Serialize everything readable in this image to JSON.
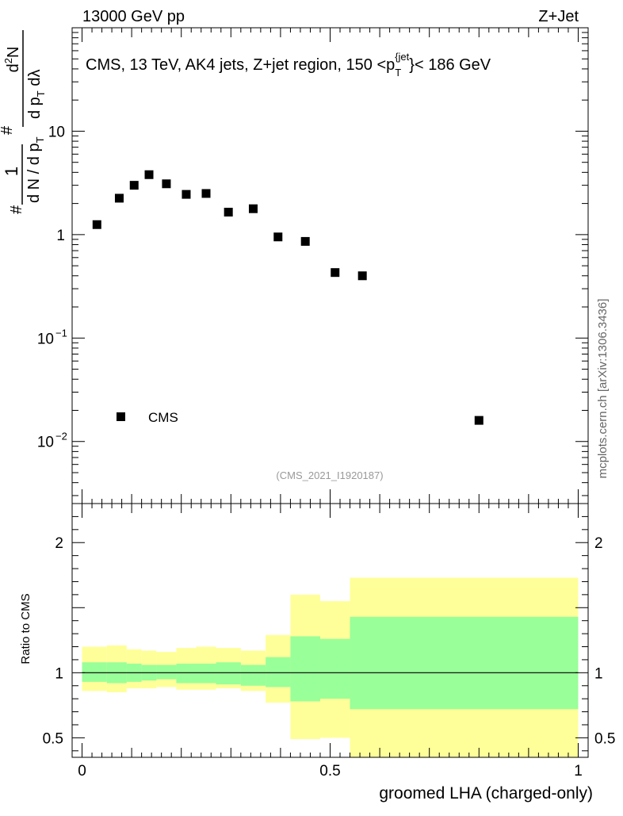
{
  "header": {
    "left_label": "13000 GeV pp",
    "right_label": "Z+Jet",
    "watermark": "mcplots.cern.ch [arXiv:1306.3436]"
  },
  "chart_data": [
    {
      "type": "scatter",
      "title": "CMS, 13 TeV, AK4 jets, Z+jet region, 150 <p_T^{jet}< 186 GeV",
      "title_parts": {
        "prefix": "CMS, 13 TeV, AK4 jets, Z+jet region, 150 <p",
        "sub": "T",
        "sup": "{jet",
        "suffix": "}< 186 GeV"
      },
      "analysis_id": "(CMS_2021_I1920187)",
      "xlabel": "groomed LHA (charged-only)",
      "ylabel": {
        "hash1": "#",
        "frac1_num": "1",
        "frac1_den": "d N / d p",
        "frac1_den_sub": "T",
        "hash2": "#",
        "frac2_num": "d",
        "frac2_num_sup": "2",
        "frac2_num_tail": "N",
        "frac2_den": "d p",
        "frac2_den_sub": "T",
        "frac2_den_tail": " dλ"
      },
      "xlim": [
        -0.02,
        1.02
      ],
      "ylim_log10": [
        -2.6,
        2.0
      ],
      "yscale": "log",
      "y_ticks": [
        {
          "value": 10,
          "label": "10"
        },
        {
          "value": 1,
          "label": "1"
        },
        {
          "value": 0.1,
          "label": "10",
          "sup": "−1"
        },
        {
          "value": 0.01,
          "label": "10",
          "sup": "−2"
        }
      ],
      "legend": [
        {
          "name": "CMS",
          "marker": "square",
          "position": "bottom-left"
        }
      ],
      "series": [
        {
          "name": "CMS",
          "x": [
            0.03,
            0.075,
            0.105,
            0.135,
            0.17,
            0.21,
            0.25,
            0.295,
            0.345,
            0.395,
            0.45,
            0.51,
            0.565,
            0.8
          ],
          "values": [
            1.25,
            2.25,
            3.0,
            3.8,
            3.1,
            2.45,
            2.5,
            1.65,
            1.78,
            0.95,
            0.86,
            0.43,
            0.4,
            0.016
          ]
        }
      ]
    },
    {
      "type": "area",
      "title": "",
      "xlabel": "groomed LHA (charged-only)",
      "ylabel": "Ratio to CMS",
      "xlim": [
        -0.02,
        1.02
      ],
      "ylim": [
        0.35,
        2.3
      ],
      "y_ticks": [
        {
          "value": 2,
          "label": "2"
        },
        {
          "value": 1,
          "label": "1"
        },
        {
          "value": 0.5,
          "label": "0.5"
        }
      ],
      "x_ticks": [
        {
          "value": 0,
          "label": "0"
        },
        {
          "value": 0.5,
          "label": "0.5"
        },
        {
          "value": 1,
          "label": "1"
        }
      ],
      "reference_line": 1,
      "bin_edges": [
        0.0,
        0.05,
        0.09,
        0.12,
        0.15,
        0.19,
        0.23,
        0.27,
        0.32,
        0.37,
        0.42,
        0.48,
        0.54,
        1.0
      ],
      "series": [
        {
          "name": "total uncertainty",
          "color": "#ffff99",
          "lo": [
            0.86,
            0.85,
            0.88,
            0.88,
            0.89,
            0.87,
            0.87,
            0.88,
            0.86,
            0.77,
            0.49,
            0.5,
            0.35
          ],
          "hi": [
            1.2,
            1.21,
            1.18,
            1.17,
            1.16,
            1.19,
            1.2,
            1.19,
            1.17,
            1.29,
            1.6,
            1.55,
            1.73
          ]
        },
        {
          "name": "statistical uncertainty",
          "color": "#99ff99",
          "lo": [
            0.93,
            0.92,
            0.93,
            0.94,
            0.95,
            0.92,
            0.92,
            0.91,
            0.9,
            0.89,
            0.78,
            0.8,
            0.72
          ],
          "hi": [
            1.08,
            1.08,
            1.07,
            1.06,
            1.06,
            1.07,
            1.07,
            1.08,
            1.06,
            1.12,
            1.28,
            1.26,
            1.43
          ]
        }
      ]
    }
  ]
}
